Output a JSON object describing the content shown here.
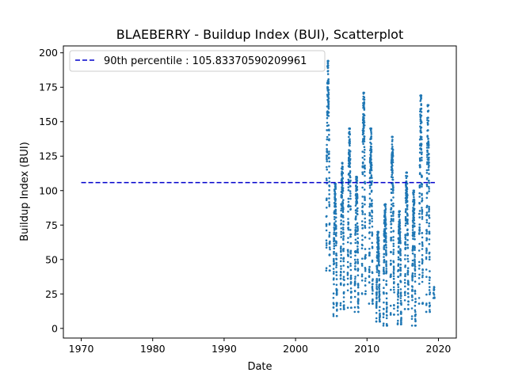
{
  "chart_data": {
    "type": "scatter",
    "title": "BLAEBERRY - Buildup Index (BUI), Scatterplot",
    "xlabel": "Date",
    "ylabel": "Buildup Index (BUI)",
    "xlim": [
      1967.5,
      2022.5
    ],
    "ylim": [
      -7,
      205
    ],
    "x_ticks": [
      1970,
      1980,
      1990,
      2000,
      2010,
      2020
    ],
    "y_ticks": [
      0,
      25,
      50,
      75,
      100,
      125,
      150,
      175,
      200
    ],
    "grid": false,
    "legend_position": "top-left",
    "reference_line": {
      "label": "90th percentile : 105.83370590209961",
      "value": 105.83370590209961,
      "x_start": 1970,
      "x_end": 2019.5,
      "style": "dashed",
      "color": "#0000cc"
    },
    "series": [
      {
        "color": "#1f77b4",
        "seasons": [
          {
            "year": 2004,
            "min": 42,
            "max": 194
          },
          {
            "year": 2005,
            "min": 9,
            "max": 105
          },
          {
            "year": 2006,
            "min": 14,
            "max": 120
          },
          {
            "year": 2007,
            "min": 15,
            "max": 145
          },
          {
            "year": 2008,
            "min": 12,
            "max": 110
          },
          {
            "year": 2009,
            "min": 25,
            "max": 171
          },
          {
            "year": 2010,
            "min": 18,
            "max": 145
          },
          {
            "year": 2011,
            "min": 5,
            "max": 70
          },
          {
            "year": 2012,
            "min": 2,
            "max": 90
          },
          {
            "year": 2013,
            "min": 10,
            "max": 139
          },
          {
            "year": 2014,
            "min": 3,
            "max": 85
          },
          {
            "year": 2015,
            "min": 14,
            "max": 113
          },
          {
            "year": 2016,
            "min": 2,
            "max": 100
          },
          {
            "year": 2017,
            "min": 18,
            "max": 169
          },
          {
            "year": 2018,
            "min": 12,
            "max": 162
          },
          {
            "year": 2019,
            "min": 22,
            "max": 30
          }
        ]
      }
    ]
  }
}
